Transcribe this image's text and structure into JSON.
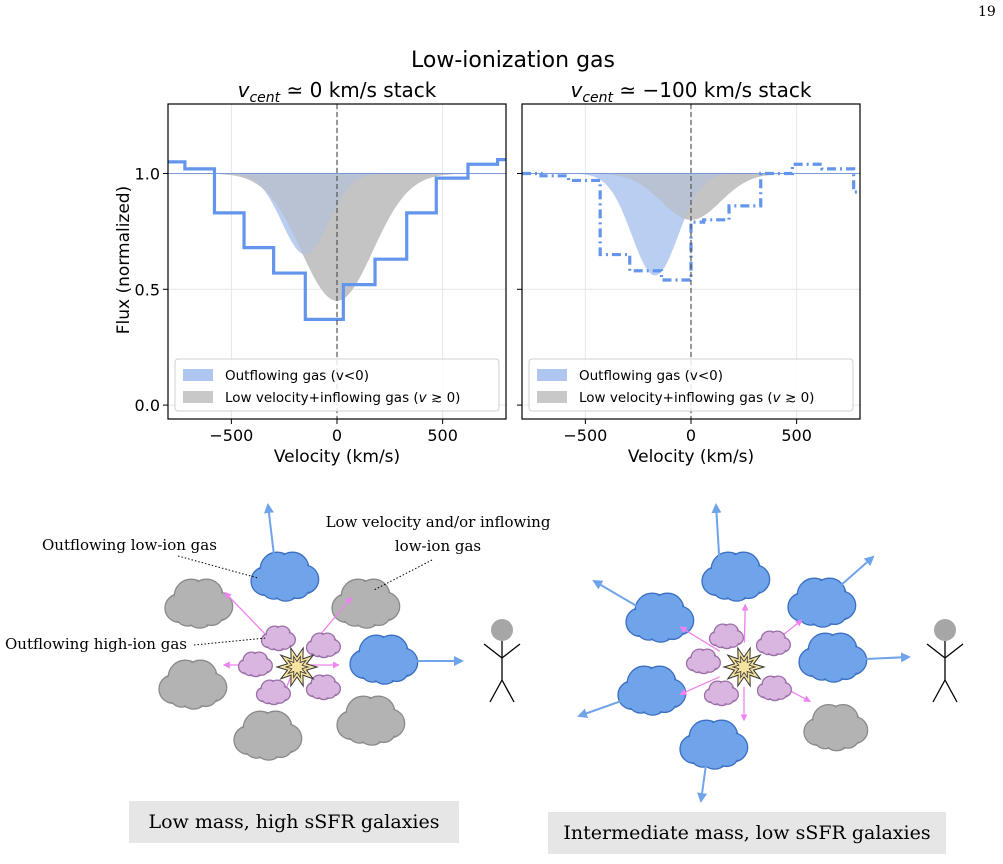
{
  "page_number": "19",
  "figure_title": "Low-ionization gas",
  "y_axis_label": "Flux (normalized)",
  "chart_data": [
    {
      "type": "area",
      "title": "v_cent ≃ 0 km/s stack",
      "title_var": "v",
      "title_sub": "cent",
      "title_rest": " ≃ 0 km/s stack",
      "xlabel": "Velocity (km/s)",
      "ylabel": "Flux (normalized)",
      "xlim": [
        -800,
        800
      ],
      "ylim": [
        -0.06,
        1.3
      ],
      "xticks": [
        -500,
        0,
        500
      ],
      "xtick_labels": [
        "−500",
        "0",
        "500"
      ],
      "yticks": [
        0.0,
        0.5,
        1.0
      ],
      "ytick_labels": [
        "0.0",
        "0.5",
        "1.0"
      ],
      "grid": true,
      "legend_position": "lower-center",
      "series": [
        {
          "name": "Outflowing gas (v<0)",
          "kind": "gaussian",
          "depth": 0.35,
          "center": -150,
          "sigma": 110,
          "color": "#aec6f0"
        },
        {
          "name": "Low velocity+inflowing gas (v ≳ 0)",
          "kind": "gaussian",
          "depth": 0.55,
          "center": 0,
          "sigma": 170,
          "color": "#bfbfbf"
        },
        {
          "name": "stack spectrum",
          "kind": "step",
          "style": "solid",
          "color": "#6495ed",
          "x": [
            -800,
            -720,
            -580,
            -440,
            -300,
            -150,
            30,
            180,
            330,
            470,
            620,
            760,
            800
          ],
          "y": [
            1.05,
            1.02,
            0.83,
            0.68,
            0.57,
            0.37,
            0.52,
            0.63,
            0.83,
            0.98,
            1.04,
            1.06,
            1.06
          ]
        }
      ]
    },
    {
      "type": "area",
      "title": "v_cent ≃ −100 km/s stack",
      "title_var": "v",
      "title_sub": "cent",
      "title_rest": " ≃ −100 km/s stack",
      "xlabel": "Velocity (km/s)",
      "ylabel": "",
      "xlim": [
        -800,
        800
      ],
      "ylim": [
        -0.06,
        1.3
      ],
      "xticks": [
        -500,
        0,
        500
      ],
      "xtick_labels": [
        "−500",
        "0",
        "500"
      ],
      "yticks": [
        0.0,
        0.5,
        1.0
      ],
      "ytick_labels": [
        "",
        "",
        ""
      ],
      "grid": true,
      "legend_position": "lower-center",
      "series": [
        {
          "name": "Outflowing gas (v<0)",
          "kind": "gaussian",
          "depth": 0.44,
          "center": -170,
          "sigma": 110,
          "color": "#aec6f0"
        },
        {
          "name": "Low velocity+inflowing gas (v ≳ 0)",
          "kind": "gaussian",
          "depth": 0.2,
          "center": 0,
          "sigma": 140,
          "color": "#bfbfbf"
        },
        {
          "name": "stack spectrum",
          "kind": "step",
          "style": "dashdot",
          "color": "#6495ed",
          "x": [
            -800,
            -710,
            -580,
            -430,
            -290,
            -140,
            0,
            60,
            180,
            330,
            480,
            620,
            770,
            800
          ],
          "y": [
            1.0,
            0.99,
            0.97,
            0.65,
            0.58,
            0.54,
            0.79,
            0.8,
            0.86,
            1.0,
            1.04,
            1.02,
            0.92,
            0.92
          ]
        }
      ]
    }
  ],
  "legend": {
    "outflowing": "Outflowing gas (v<0)",
    "lowvel_prefix": "Low velocity+inflowing gas (",
    "lowvel_var": "v",
    "lowvel_op": " ≳ 0)"
  },
  "diagram": {
    "labels": {
      "outflowing_low_ion": "Outflowing low-ion gas",
      "low_velocity_line1": "Low velocity and/or inflowing",
      "low_velocity_line2": "low-ion gas",
      "outflowing_high_ion": "Outflowing high-ion gas"
    },
    "captions": {
      "left": "Low mass, high sSFR galaxies",
      "right": "Intermediate mass, low sSFR galaxies"
    },
    "colors": {
      "blue_cloud": "#6fa3ea",
      "gray_cloud": "#b3b3b3",
      "pink_cloud": "#d8b6e0",
      "arrow_blue": "#6fa3ea",
      "arrow_pink": "#ee82ee",
      "star": "#f7e3a0",
      "observer": "#a6a6a6"
    }
  }
}
